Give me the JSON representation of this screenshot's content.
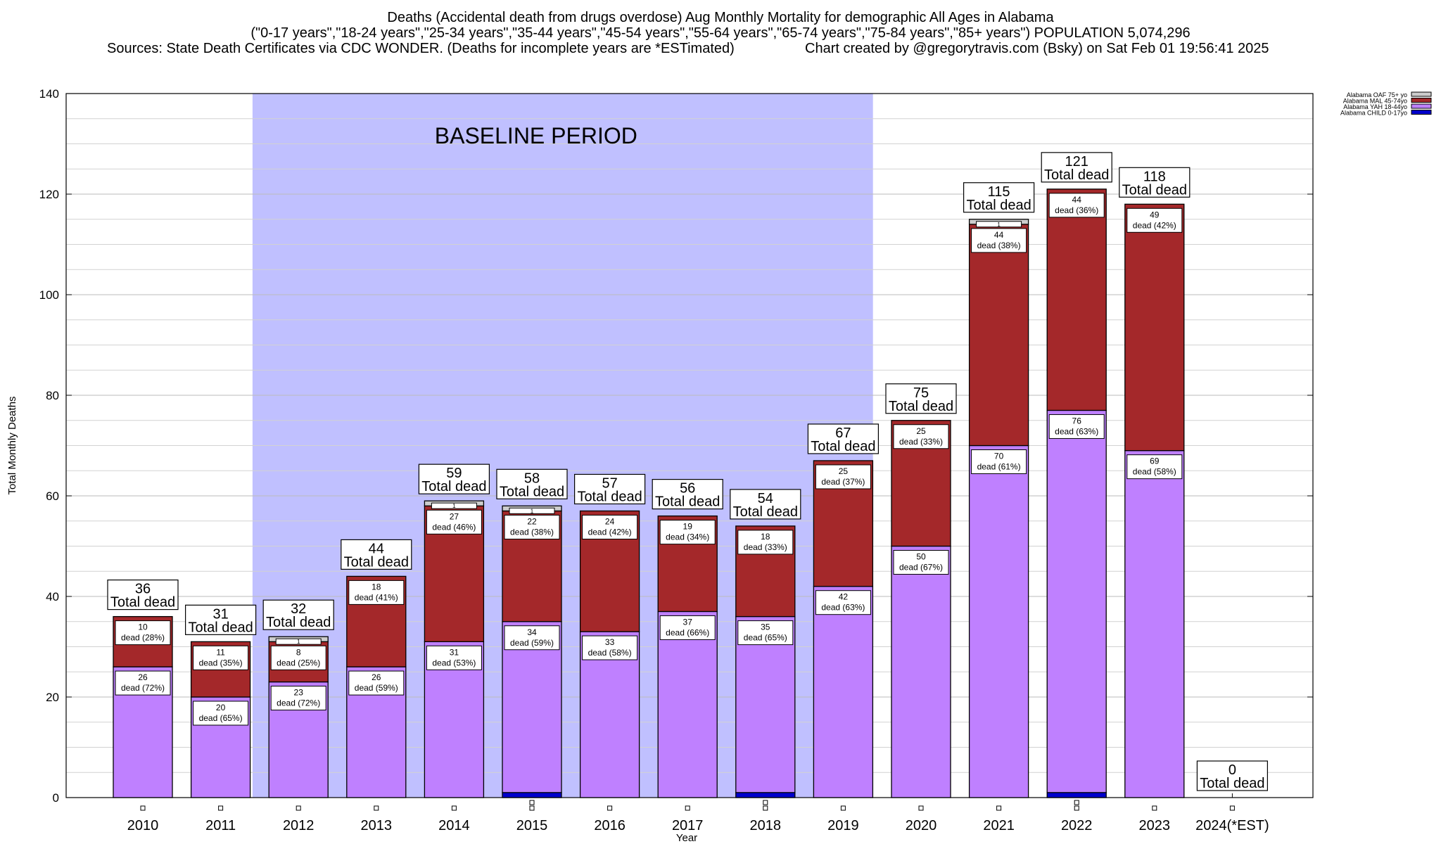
{
  "header": {
    "title_line1": "Deaths (Accidental death from drugs overdose) Aug Monthly Mortality for demographic All Ages in Alabama",
    "title_line2": "(\"0-17 years\",\"18-24 years\",\"25-34 years\",\"35-44 years\",\"45-54 years\",\"55-64 years\",\"65-74 years\",\"75-84 years\",\"85+ years\") POPULATION 5,074,296",
    "sources": "Sources: State Death Certificates via CDC WONDER. (Deaths for incomplete years are *ESTimated)",
    "credit": "Chart created by @gregorytravis.com (Bsky) on Sat Feb 01 19:56:41 2025"
  },
  "chart_data": {
    "type": "bar",
    "stacked": true,
    "xlabel": "Year",
    "ylabel": "Total Monthly Deaths",
    "ylim": [
      0,
      140
    ],
    "yticks": [
      0,
      20,
      40,
      60,
      80,
      100,
      120,
      140
    ],
    "grid": true,
    "legend_position": "top-right",
    "baseline_label": "BASELINE PERIOD",
    "baseline_range": [
      "2012",
      "2019"
    ],
    "total_label": "Total dead",
    "segment_label_word": "dead",
    "categories": [
      "2010",
      "2011",
      "2012",
      "2013",
      "2014",
      "2015",
      "2016",
      "2017",
      "2018",
      "2019",
      "2020",
      "2021",
      "2022",
      "2023",
      "2024(*EST)"
    ],
    "totals": [
      36,
      31,
      32,
      44,
      59,
      58,
      57,
      56,
      54,
      67,
      75,
      115,
      121,
      118,
      0
    ],
    "series": [
      {
        "name": "Alabama CHILD 0-17yo",
        "color": "#0000cc",
        "values": [
          0,
          0,
          0,
          0,
          0,
          1,
          0,
          0,
          1,
          0,
          0,
          0,
          1,
          0,
          0
        ],
        "labels": [
          null,
          null,
          null,
          null,
          null,
          null,
          null,
          null,
          null,
          null,
          null,
          null,
          null,
          null,
          null
        ]
      },
      {
        "name": "Alabama YAH 18-44yo",
        "color": "#bf80ff",
        "values": [
          26,
          20,
          23,
          26,
          31,
          34,
          33,
          37,
          35,
          42,
          50,
          70,
          76,
          69,
          0
        ],
        "labels": [
          {
            "n": "26",
            "pct": "72%"
          },
          {
            "n": "20",
            "pct": "65%"
          },
          {
            "n": "23",
            "pct": "72%"
          },
          {
            "n": "26",
            "pct": "59%"
          },
          {
            "n": "31",
            "pct": "53%"
          },
          {
            "n": "34",
            "pct": "59%"
          },
          {
            "n": "33",
            "pct": "58%"
          },
          {
            "n": "37",
            "pct": "66%"
          },
          {
            "n": "35",
            "pct": "65%"
          },
          {
            "n": "42",
            "pct": "63%"
          },
          {
            "n": "50",
            "pct": "67%"
          },
          {
            "n": "70",
            "pct": "61%"
          },
          {
            "n": "76",
            "pct": "63%"
          },
          {
            "n": "69",
            "pct": "58%"
          },
          null
        ]
      },
      {
        "name": "Alabama MAL 45-74yo",
        "color": "#a4282a",
        "values": [
          10,
          11,
          8,
          18,
          27,
          22,
          24,
          19,
          18,
          25,
          25,
          44,
          44,
          49,
          0
        ],
        "labels": [
          {
            "n": "10",
            "pct": "28%"
          },
          {
            "n": "11",
            "pct": "35%"
          },
          {
            "n": "8",
            "pct": "25%"
          },
          {
            "n": "18",
            "pct": "41%"
          },
          {
            "n": "27",
            "pct": "46%"
          },
          {
            "n": "22",
            "pct": "38%"
          },
          {
            "n": "24",
            "pct": "42%"
          },
          {
            "n": "19",
            "pct": "34%"
          },
          {
            "n": "18",
            "pct": "33%"
          },
          {
            "n": "25",
            "pct": "37%"
          },
          {
            "n": "25",
            "pct": "33%"
          },
          {
            "n": "44",
            "pct": "38%"
          },
          {
            "n": "44",
            "pct": "36%"
          },
          {
            "n": "49",
            "pct": "42%"
          },
          null
        ]
      },
      {
        "name": "Alabama OAF 75+ yo",
        "color": "#cccccc",
        "values": [
          0,
          0,
          1,
          0,
          1,
          1,
          0,
          0,
          0,
          0,
          0,
          1,
          0,
          0,
          0
        ],
        "labels": [
          null,
          null,
          {
            "n": "1"
          },
          null,
          {
            "n": "1"
          },
          {
            "n": "1"
          },
          null,
          null,
          null,
          null,
          null,
          {
            "n": "1"
          },
          null,
          null,
          null
        ]
      }
    ]
  }
}
